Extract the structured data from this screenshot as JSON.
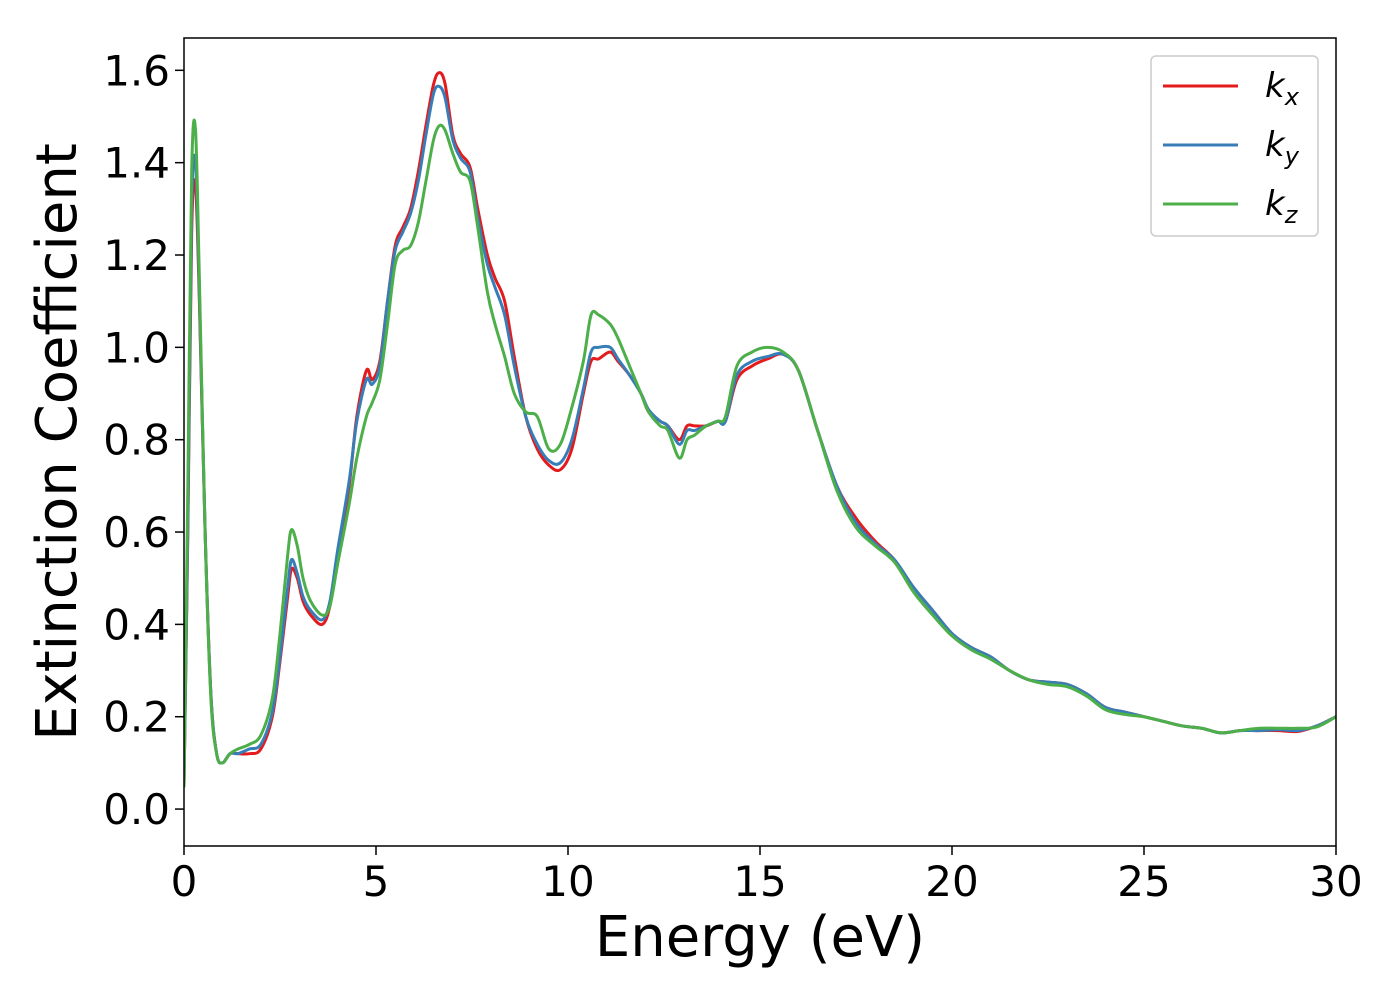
{
  "chart_data": {
    "type": "line",
    "xlabel": "Energy (eV)",
    "ylabel": "Extinction Coefficient",
    "xlim": [
      0,
      30
    ],
    "ylim": [
      -0.08,
      1.67
    ],
    "xticks": [
      "0",
      "5",
      "10",
      "15",
      "20",
      "25",
      "30"
    ],
    "yticks": [
      "0.0",
      "0.2",
      "0.4",
      "0.6",
      "0.8",
      "1.0",
      "1.2",
      "1.4",
      "1.6"
    ],
    "legend_position": "top-right",
    "grid": false,
    "series": [
      {
        "name": "k",
        "sub": "x",
        "color": "#e41a1c",
        "x": [
          0,
          0.1,
          0.2,
          0.3,
          0.4,
          0.55,
          0.7,
          0.85,
          1.0,
          1.2,
          1.4,
          1.7,
          2.0,
          2.3,
          2.5,
          2.7,
          2.8,
          2.95,
          3.1,
          3.3,
          3.6,
          3.8,
          4.0,
          4.3,
          4.5,
          4.75,
          4.9,
          5.1,
          5.3,
          5.5,
          5.7,
          5.9,
          6.1,
          6.3,
          6.5,
          6.65,
          6.8,
          7.0,
          7.2,
          7.45,
          7.65,
          7.9,
          8.1,
          8.35,
          8.6,
          8.9,
          9.2,
          9.5,
          9.8,
          10.1,
          10.4,
          10.6,
          10.8,
          11.1,
          11.3,
          11.6,
          11.9,
          12.1,
          12.4,
          12.6,
          12.9,
          13.1,
          13.3,
          13.6,
          13.9,
          14.1,
          14.4,
          14.8,
          15.2,
          15.6,
          16.0,
          16.5,
          17.0,
          17.5,
          18.0,
          18.5,
          19.0,
          19.5,
          20.0,
          20.5,
          21.0,
          21.5,
          22.0,
          22.5,
          23.0,
          23.5,
          24.0,
          24.5,
          25.0,
          25.5,
          26.0,
          26.5,
          27.0,
          27.5,
          28.0,
          28.5,
          29.0,
          29.5,
          30.0
        ],
        "y": [
          0.05,
          0.6,
          1.25,
          1.35,
          1.1,
          0.6,
          0.25,
          0.12,
          0.1,
          0.12,
          0.12,
          0.12,
          0.13,
          0.2,
          0.32,
          0.46,
          0.52,
          0.5,
          0.45,
          0.42,
          0.4,
          0.44,
          0.55,
          0.7,
          0.85,
          0.95,
          0.93,
          0.97,
          1.1,
          1.22,
          1.26,
          1.3,
          1.38,
          1.48,
          1.57,
          1.595,
          1.57,
          1.46,
          1.42,
          1.39,
          1.3,
          1.2,
          1.15,
          1.1,
          0.98,
          0.85,
          0.78,
          0.745,
          0.735,
          0.78,
          0.9,
          0.97,
          0.975,
          0.99,
          0.97,
          0.94,
          0.9,
          0.86,
          0.84,
          0.83,
          0.8,
          0.83,
          0.83,
          0.83,
          0.84,
          0.84,
          0.93,
          0.96,
          0.975,
          0.985,
          0.95,
          0.82,
          0.7,
          0.63,
          0.58,
          0.54,
          0.48,
          0.43,
          0.38,
          0.35,
          0.33,
          0.3,
          0.28,
          0.275,
          0.27,
          0.25,
          0.22,
          0.21,
          0.2,
          0.19,
          0.18,
          0.175,
          0.165,
          0.17,
          0.17,
          0.17,
          0.168,
          0.18,
          0.2
        ]
      },
      {
        "name": "k",
        "sub": "y",
        "color": "#377eb8",
        "x": [
          0,
          0.1,
          0.2,
          0.3,
          0.4,
          0.55,
          0.7,
          0.85,
          1.0,
          1.2,
          1.4,
          1.7,
          2.0,
          2.3,
          2.5,
          2.7,
          2.8,
          2.95,
          3.1,
          3.3,
          3.6,
          3.8,
          4.0,
          4.3,
          4.5,
          4.75,
          4.9,
          5.1,
          5.3,
          5.5,
          5.7,
          5.9,
          6.1,
          6.3,
          6.5,
          6.65,
          6.8,
          7.0,
          7.2,
          7.45,
          7.65,
          7.9,
          8.1,
          8.35,
          8.6,
          8.9,
          9.2,
          9.5,
          9.8,
          10.1,
          10.4,
          10.6,
          10.8,
          11.1,
          11.3,
          11.6,
          11.9,
          12.1,
          12.4,
          12.6,
          12.9,
          13.1,
          13.3,
          13.6,
          13.9,
          14.1,
          14.4,
          14.8,
          15.2,
          15.6,
          16.0,
          16.5,
          17.0,
          17.5,
          18.0,
          18.5,
          19.0,
          19.5,
          20.0,
          20.5,
          21.0,
          21.5,
          22.0,
          22.5,
          23.0,
          23.5,
          24.0,
          24.5,
          25.0,
          25.5,
          26.0,
          26.5,
          27.0,
          27.5,
          28.0,
          28.5,
          29.0,
          29.5,
          30.0
        ],
        "y": [
          0.05,
          0.62,
          1.3,
          1.4,
          1.12,
          0.6,
          0.25,
          0.12,
          0.1,
          0.12,
          0.12,
          0.13,
          0.14,
          0.21,
          0.33,
          0.48,
          0.54,
          0.51,
          0.46,
          0.43,
          0.41,
          0.45,
          0.56,
          0.71,
          0.84,
          0.93,
          0.92,
          0.96,
          1.1,
          1.21,
          1.25,
          1.29,
          1.36,
          1.46,
          1.55,
          1.565,
          1.54,
          1.45,
          1.41,
          1.38,
          1.28,
          1.18,
          1.13,
          1.07,
          0.96,
          0.85,
          0.79,
          0.755,
          0.75,
          0.8,
          0.91,
          0.99,
          1.0,
          1.0,
          0.975,
          0.94,
          0.9,
          0.865,
          0.84,
          0.83,
          0.79,
          0.82,
          0.82,
          0.83,
          0.84,
          0.84,
          0.94,
          0.97,
          0.98,
          0.985,
          0.95,
          0.82,
          0.7,
          0.62,
          0.575,
          0.54,
          0.48,
          0.43,
          0.38,
          0.35,
          0.33,
          0.3,
          0.28,
          0.275,
          0.27,
          0.25,
          0.22,
          0.21,
          0.2,
          0.19,
          0.18,
          0.175,
          0.165,
          0.17,
          0.17,
          0.172,
          0.17,
          0.18,
          0.2
        ]
      },
      {
        "name": "k",
        "sub": "z",
        "color": "#4daf4a",
        "x": [
          0,
          0.1,
          0.2,
          0.3,
          0.4,
          0.55,
          0.7,
          0.85,
          1.0,
          1.2,
          1.4,
          1.7,
          2.0,
          2.3,
          2.5,
          2.7,
          2.8,
          2.95,
          3.1,
          3.3,
          3.6,
          3.8,
          4.0,
          4.3,
          4.5,
          4.75,
          4.9,
          5.1,
          5.3,
          5.5,
          5.7,
          5.9,
          6.1,
          6.3,
          6.5,
          6.65,
          6.8,
          7.0,
          7.2,
          7.45,
          7.65,
          7.9,
          8.1,
          8.35,
          8.6,
          8.9,
          9.2,
          9.5,
          9.8,
          10.1,
          10.4,
          10.6,
          10.8,
          11.1,
          11.3,
          11.6,
          11.9,
          12.1,
          12.4,
          12.6,
          12.9,
          13.1,
          13.3,
          13.6,
          13.9,
          14.1,
          14.4,
          14.8,
          15.2,
          15.6,
          16.0,
          16.5,
          17.0,
          17.5,
          18.0,
          18.5,
          19.0,
          19.5,
          20.0,
          20.5,
          21.0,
          21.5,
          22.0,
          22.5,
          23.0,
          23.5,
          24.0,
          24.5,
          25.0,
          25.5,
          26.0,
          26.5,
          27.0,
          27.5,
          28.0,
          28.5,
          29.0,
          29.5,
          30.0
        ],
        "y": [
          0.05,
          0.7,
          1.38,
          1.47,
          1.15,
          0.6,
          0.24,
          0.12,
          0.1,
          0.12,
          0.13,
          0.14,
          0.16,
          0.24,
          0.38,
          0.55,
          0.605,
          0.57,
          0.5,
          0.45,
          0.42,
          0.44,
          0.53,
          0.66,
          0.76,
          0.85,
          0.88,
          0.93,
          1.05,
          1.18,
          1.21,
          1.22,
          1.27,
          1.36,
          1.45,
          1.48,
          1.47,
          1.42,
          1.38,
          1.36,
          1.26,
          1.12,
          1.05,
          0.98,
          0.9,
          0.86,
          0.85,
          0.78,
          0.79,
          0.87,
          0.97,
          1.07,
          1.07,
          1.05,
          1.02,
          0.96,
          0.9,
          0.86,
          0.83,
          0.82,
          0.76,
          0.8,
          0.81,
          0.83,
          0.84,
          0.85,
          0.96,
          0.99,
          1.0,
          0.99,
          0.95,
          0.82,
          0.69,
          0.61,
          0.57,
          0.535,
          0.47,
          0.42,
          0.375,
          0.345,
          0.325,
          0.3,
          0.28,
          0.27,
          0.265,
          0.245,
          0.215,
          0.205,
          0.2,
          0.19,
          0.18,
          0.175,
          0.165,
          0.17,
          0.175,
          0.175,
          0.175,
          0.178,
          0.2
        ]
      }
    ]
  }
}
